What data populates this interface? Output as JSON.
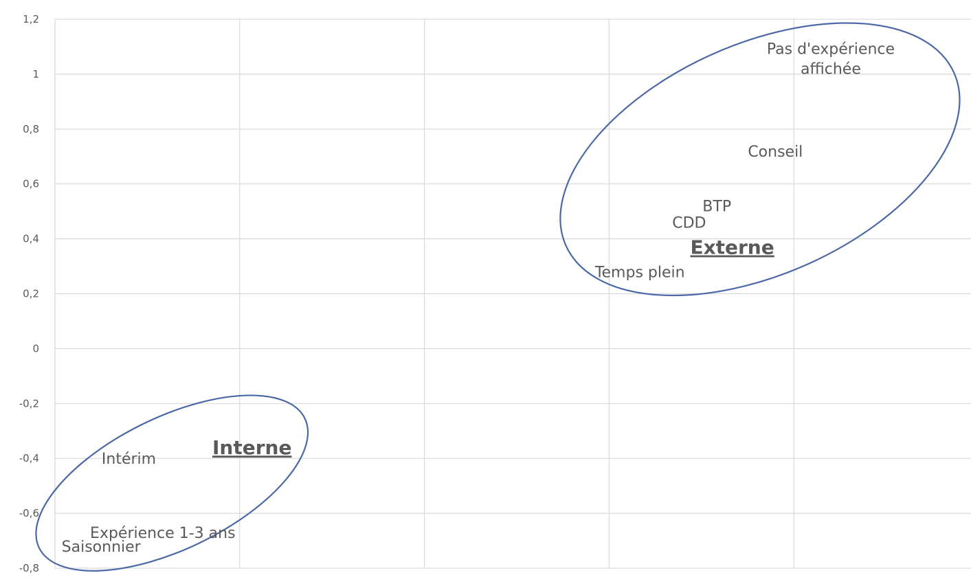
{
  "chart_data": {
    "type": "scatter",
    "title": "",
    "xlabel": "",
    "ylabel": "",
    "xlim": [
      -1.2,
      1.8
    ],
    "ylim": [
      -0.8,
      1.2
    ],
    "yticks": [
      "1,2",
      "1",
      "0,8",
      "0,6",
      "0,4",
      "0,2",
      "0",
      "-0,2",
      "-0,4",
      "-0,6",
      "-0,8"
    ],
    "ytick_values": [
      1.2,
      1.0,
      0.8,
      0.6,
      0.4,
      0.2,
      0.0,
      -0.2,
      -0.4,
      -0.6,
      -0.8
    ],
    "xgrid_values": [
      -1.2,
      -0.6,
      0.0,
      0.6,
      1.2,
      1.8
    ],
    "grid": true,
    "points": [
      {
        "label": "Pas d'expérience affichée",
        "x": 1.32,
        "y": 1.04
      },
      {
        "label": "Conseil",
        "x": 1.14,
        "y": 0.72
      },
      {
        "label": "BTP",
        "x": 0.95,
        "y": 0.52
      },
      {
        "label": "CDD",
        "x": 0.86,
        "y": 0.46
      },
      {
        "label": "Temps plein",
        "x": 0.7,
        "y": 0.28
      },
      {
        "label": "Intérim",
        "x": -0.96,
        "y": -0.4
      },
      {
        "label": "Expérience 1-3 ans",
        "x": -0.85,
        "y": -0.67
      },
      {
        "label": "Saisonnier",
        "x": -1.05,
        "y": -0.72
      }
    ],
    "groups": [
      {
        "label": "Externe",
        "x": 1.0,
        "y": 0.37,
        "ellipse": {
          "cx": 1.09,
          "cy": 0.69,
          "rx": 0.69,
          "ry": 0.42,
          "rotation_deg": -24
        }
      },
      {
        "label": "Interne",
        "x": -0.56,
        "y": -0.36,
        "ellipse": {
          "cx": -0.82,
          "cy": -0.49,
          "rx": 0.48,
          "ry": 0.24,
          "rotation_deg": -26
        }
      }
    ],
    "colors": {
      "ellipse": "#4a68a5",
      "grid": "#d9d9d9",
      "text": "#595959"
    }
  }
}
